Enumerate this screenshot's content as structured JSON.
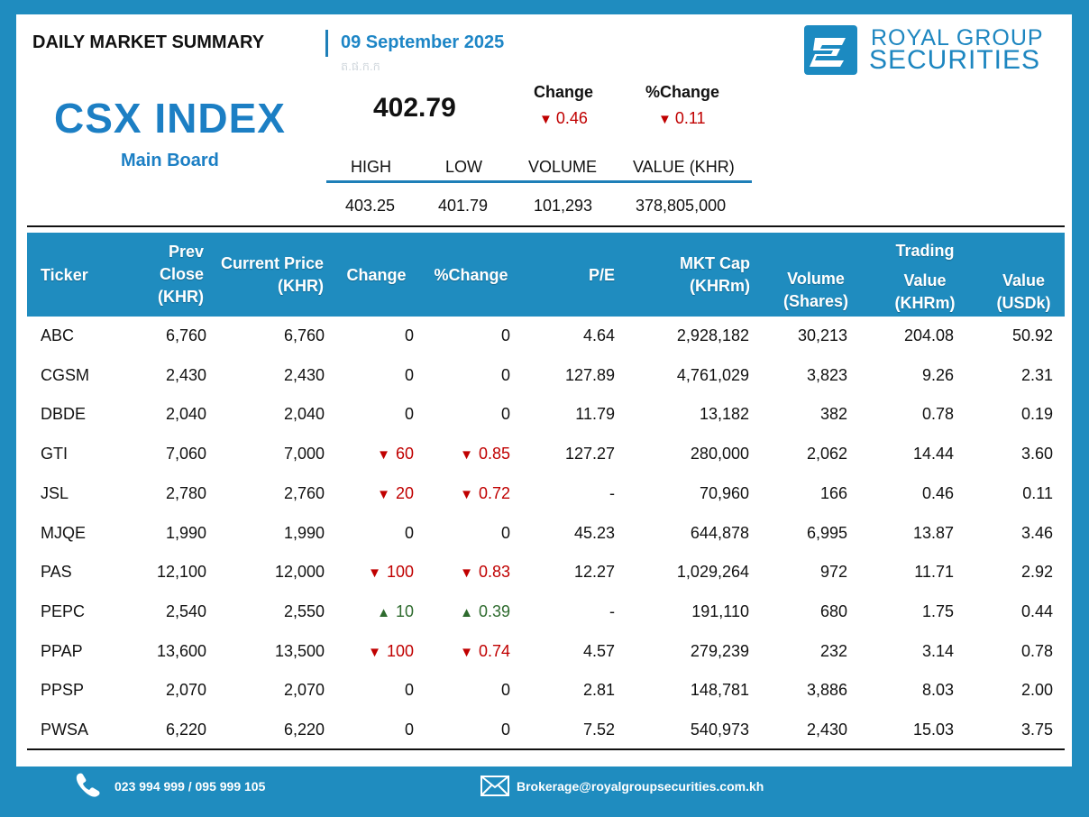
{
  "header": {
    "title": "DAILY MARKET SUMMARY",
    "date": "09 September 2025",
    "faint_text": "ត.ផ.ក.ក"
  },
  "brand": {
    "line1": "ROYAL GROUP",
    "line2": "SECURITIES",
    "color": "#1d86c0"
  },
  "index": {
    "name": "CSX INDEX",
    "board": "Main Board",
    "value": "402.79",
    "change_label": "Change",
    "pchange_label": "%Change",
    "change": "0.46",
    "pchange": "0.11",
    "direction": "down"
  },
  "stats": {
    "headers": [
      "HIGH",
      "LOW",
      "VOLUME",
      "VALUE (KHR)"
    ],
    "values": [
      "403.25",
      "401.79",
      "101,293",
      "378,805,000"
    ]
  },
  "table": {
    "headers": {
      "ticker": "Ticker",
      "prev_close": [
        "Prev",
        "Close",
        "(KHR)"
      ],
      "current_price": [
        "Current Price",
        "(KHR)"
      ],
      "change": "Change",
      "pchange": "%Change",
      "pe": "P/E",
      "mkt_cap": [
        "MKT Cap",
        "(KHRm)"
      ],
      "volume": [
        "Volume",
        "(Shares)"
      ],
      "trading": "Trading",
      "value_khr": [
        "Value",
        "(KHRm)"
      ],
      "value_usd": [
        "Value",
        "(USDk)"
      ]
    },
    "rows": [
      {
        "ticker": "ABC",
        "prev": "6,760",
        "cur": "6,760",
        "chg": "0",
        "pchg": "0",
        "dir": "none",
        "pe": "4.64",
        "mktcap": "2,928,182",
        "vol": "30,213",
        "vkhr": "204.08",
        "vusd": "50.92"
      },
      {
        "ticker": "CGSM",
        "prev": "2,430",
        "cur": "2,430",
        "chg": "0",
        "pchg": "0",
        "dir": "none",
        "pe": "127.89",
        "mktcap": "4,761,029",
        "vol": "3,823",
        "vkhr": "9.26",
        "vusd": "2.31"
      },
      {
        "ticker": "DBDE",
        "prev": "2,040",
        "cur": "2,040",
        "chg": "0",
        "pchg": "0",
        "dir": "none",
        "pe": "11.79",
        "mktcap": "13,182",
        "vol": "382",
        "vkhr": "0.78",
        "vusd": "0.19"
      },
      {
        "ticker": "GTI",
        "prev": "7,060",
        "cur": "7,000",
        "chg": "60",
        "pchg": "0.85",
        "dir": "down",
        "pe": "127.27",
        "mktcap": "280,000",
        "vol": "2,062",
        "vkhr": "14.44",
        "vusd": "3.60"
      },
      {
        "ticker": "JSL",
        "prev": "2,780",
        "cur": "2,760",
        "chg": "20",
        "pchg": "0.72",
        "dir": "down",
        "pe": "-",
        "mktcap": "70,960",
        "vol": "166",
        "vkhr": "0.46",
        "vusd": "0.11"
      },
      {
        "ticker": "MJQE",
        "prev": "1,990",
        "cur": "1,990",
        "chg": "0",
        "pchg": "0",
        "dir": "none",
        "pe": "45.23",
        "mktcap": "644,878",
        "vol": "6,995",
        "vkhr": "13.87",
        "vusd": "3.46"
      },
      {
        "ticker": "PAS",
        "prev": "12,100",
        "cur": "12,000",
        "chg": "100",
        "pchg": "0.83",
        "dir": "down",
        "pe": "12.27",
        "mktcap": "1,029,264",
        "vol": "972",
        "vkhr": "11.71",
        "vusd": "2.92"
      },
      {
        "ticker": "PEPC",
        "prev": "2,540",
        "cur": "2,550",
        "chg": "10",
        "pchg": "0.39",
        "dir": "up",
        "pe": "-",
        "mktcap": "191,110",
        "vol": "680",
        "vkhr": "1.75",
        "vusd": "0.44"
      },
      {
        "ticker": "PPAP",
        "prev": "13,600",
        "cur": "13,500",
        "chg": "100",
        "pchg": "0.74",
        "dir": "down",
        "pe": "4.57",
        "mktcap": "279,239",
        "vol": "232",
        "vkhr": "3.14",
        "vusd": "0.78"
      },
      {
        "ticker": "PPSP",
        "prev": "2,070",
        "cur": "2,070",
        "chg": "0",
        "pchg": "0",
        "dir": "none",
        "pe": "2.81",
        "mktcap": "148,781",
        "vol": "3,886",
        "vkhr": "8.03",
        "vusd": "2.00"
      },
      {
        "ticker": "PWSA",
        "prev": "6,220",
        "cur": "6,220",
        "chg": "0",
        "pchg": "0",
        "dir": "none",
        "pe": "7.52",
        "mktcap": "540,973",
        "vol": "2,430",
        "vkhr": "15.03",
        "vusd": "3.75"
      }
    ]
  },
  "footer": {
    "phone": "023 994 999 / 095 999 105",
    "email": "Brokerage@royalgroupsecurities.com.kh"
  },
  "icons": {
    "phone": "phone-icon",
    "mail": "mail-icon",
    "logo": "royal-group-logo-icon",
    "down": "down-triangle-icon",
    "up": "up-triangle-icon"
  },
  "colors": {
    "accent": "#1f8cbf",
    "down": "#c00000",
    "up": "#2e6b2e"
  }
}
